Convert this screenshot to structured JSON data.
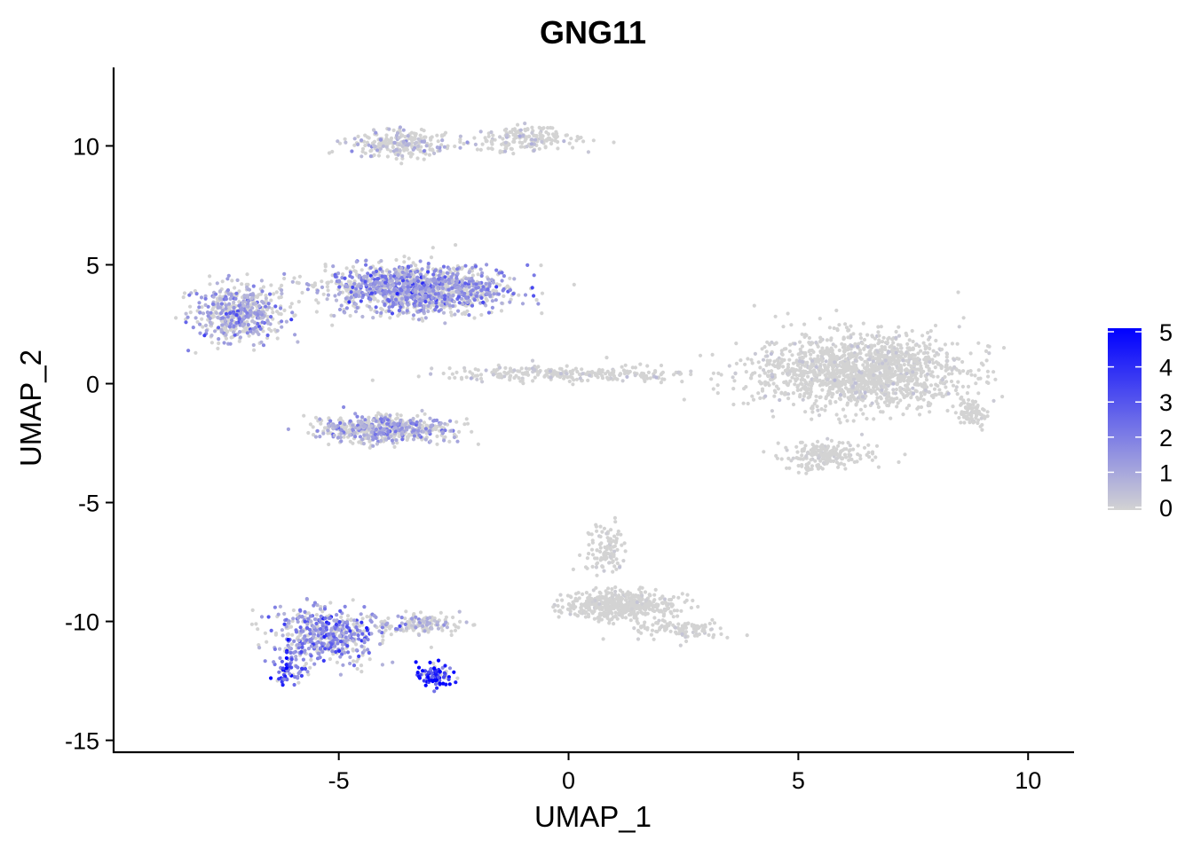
{
  "chart_data": {
    "type": "scatter",
    "title": "GNG11",
    "xlabel": "UMAP_1",
    "ylabel": "UMAP_2",
    "xlim": [
      -9.9,
      11.0
    ],
    "ylim": [
      -15.5,
      13.3
    ],
    "xticks": [
      -5,
      0,
      5,
      10
    ],
    "xtick_labels": [
      "-5",
      "0",
      "5",
      "10"
    ],
    "yticks": [
      -15,
      -10,
      -5,
      0,
      5,
      10
    ],
    "ytick_labels": [
      "-15",
      "-10",
      "-5",
      "0",
      "5",
      "10"
    ],
    "grid": false,
    "legend": {
      "position": "right",
      "type": "colorbar",
      "range": [
        0,
        5
      ],
      "ticks": [
        0,
        1,
        2,
        3,
        4,
        5
      ],
      "tick_labels": [
        "0",
        "1",
        "2",
        "3",
        "4",
        "5"
      ],
      "color_low": "#d3d3d3",
      "color_high": "#0000ff"
    },
    "point_color_low": "#d3d3d3",
    "point_color_high": "#0000ff",
    "clusters": [
      {
        "center": [
          -3.3,
          4.0
        ],
        "spread": [
          1.6,
          0.8
        ],
        "n": 1400,
        "mean_expr": 1.0
      },
      {
        "center": [
          -7.2,
          3.0
        ],
        "spread": [
          0.8,
          1.0
        ],
        "n": 500,
        "mean_expr": 0.9
      },
      {
        "center": [
          -4.0,
          -1.9
        ],
        "spread": [
          1.2,
          0.5
        ],
        "n": 550,
        "mean_expr": 0.8
      },
      {
        "center": [
          -3.7,
          10.1
        ],
        "spread": [
          0.9,
          0.5
        ],
        "n": 230,
        "mean_expr": 0.5
      },
      {
        "center": [
          -1.0,
          10.3
        ],
        "spread": [
          1.0,
          0.45
        ],
        "n": 180,
        "mean_expr": 0.3
      },
      {
        "center": [
          0.0,
          0.4
        ],
        "spread": [
          2.3,
          0.25
        ],
        "n": 260,
        "mean_expr": 0.2
      },
      {
        "center": [
          6.3,
          0.5
        ],
        "spread": [
          1.9,
          1.3
        ],
        "n": 1500,
        "mean_expr": 0.15
      },
      {
        "center": [
          5.6,
          -3.0
        ],
        "spread": [
          0.8,
          0.5
        ],
        "n": 200,
        "mean_expr": 0.1
      },
      {
        "center": [
          8.8,
          -1.2
        ],
        "spread": [
          0.3,
          0.4
        ],
        "n": 80,
        "mean_expr": 0.1
      },
      {
        "center": [
          -5.3,
          -10.6
        ],
        "spread": [
          0.9,
          0.9
        ],
        "n": 520,
        "mean_expr": 1.2
      },
      {
        "center": [
          -3.3,
          -10.1
        ],
        "spread": [
          0.8,
          0.35
        ],
        "n": 160,
        "mean_expr": 0.6
      },
      {
        "center": [
          1.1,
          -9.3
        ],
        "spread": [
          1.0,
          0.5
        ],
        "n": 480,
        "mean_expr": 0.1
      },
      {
        "center": [
          0.8,
          -7.0
        ],
        "spread": [
          0.35,
          0.9
        ],
        "n": 110,
        "mean_expr": 0.1
      },
      {
        "center": [
          2.4,
          -10.3
        ],
        "spread": [
          0.9,
          0.35
        ],
        "n": 110,
        "mean_expr": 0.1
      },
      {
        "center": [
          -2.9,
          -12.3
        ],
        "spread": [
          0.35,
          0.4
        ],
        "n": 90,
        "mean_expr": 2.8
      },
      {
        "center": [
          -6.1,
          -12.1
        ],
        "spread": [
          0.3,
          0.5
        ],
        "n": 60,
        "mean_expr": 2.2
      }
    ]
  }
}
